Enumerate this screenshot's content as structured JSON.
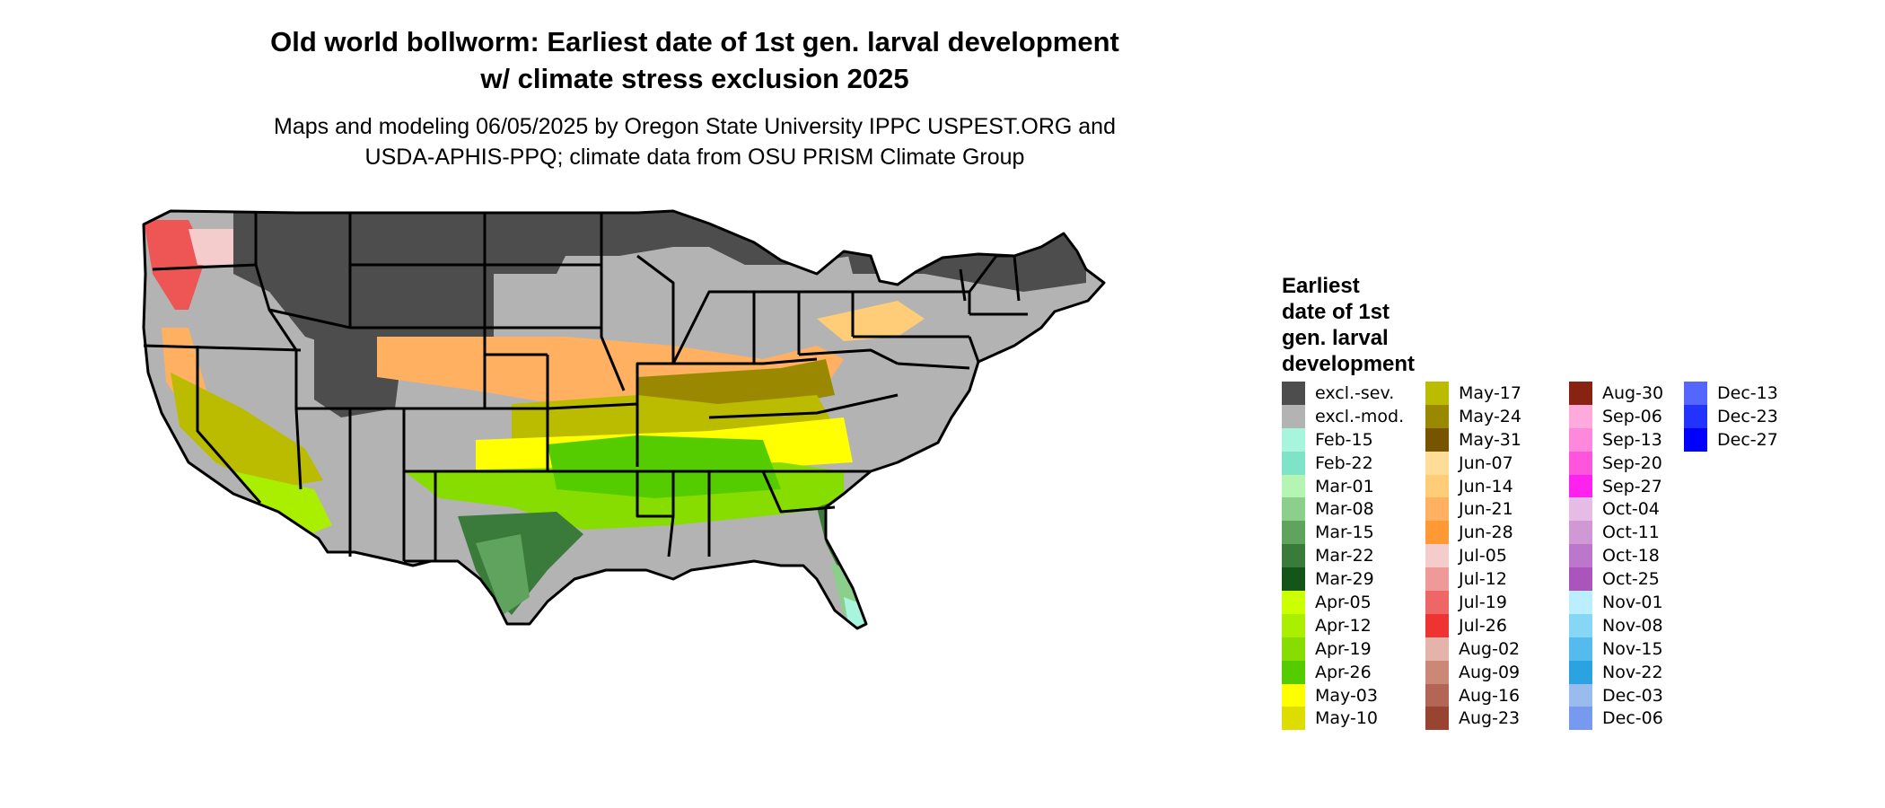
{
  "title": {
    "line1": "Old world bollworm: Earliest date of 1st gen. larval development",
    "line2": "w/ climate stress exclusion 2025"
  },
  "subtitle": {
    "line1": "Maps and modeling 06/05/2025 by Oregon State University IPPC USPEST.ORG and",
    "line2": "USDA-APHIS-PPQ; climate data from OSU PRISM Climate Group"
  },
  "legend": {
    "title_lines": [
      "Earliest",
      "date of 1st",
      "gen. larval",
      "development"
    ],
    "columns": [
      [
        {
          "label": "excl.-sev.",
          "color": "#4d4d4d"
        },
        {
          "label": "excl.-mod.",
          "color": "#b3b3b3"
        },
        {
          "label": "Feb-15",
          "color": "#a6f5dc"
        },
        {
          "label": "Feb-22",
          "color": "#7fe3c8"
        },
        {
          "label": "Mar-01",
          "color": "#b4f5b4"
        },
        {
          "label": "Mar-08",
          "color": "#8ccf8c"
        },
        {
          "label": "Mar-15",
          "color": "#5fa35f"
        },
        {
          "label": "Mar-22",
          "color": "#3a7a3a"
        },
        {
          "label": "Mar-29",
          "color": "#15551a"
        },
        {
          "label": "Apr-05",
          "color": "#ccff00"
        },
        {
          "label": "Apr-12",
          "color": "#aaee00"
        },
        {
          "label": "Apr-19",
          "color": "#88dd00"
        },
        {
          "label": "Apr-26",
          "color": "#55cc00"
        },
        {
          "label": "May-03",
          "color": "#ffff00"
        },
        {
          "label": "May-10",
          "color": "#dddd00"
        }
      ],
      [
        {
          "label": "May-17",
          "color": "#bbbb00"
        },
        {
          "label": "May-24",
          "color": "#998800"
        },
        {
          "label": "May-31",
          "color": "#775500"
        },
        {
          "label": "Jun-07",
          "color": "#ffdd99"
        },
        {
          "label": "Jun-14",
          "color": "#ffcc77"
        },
        {
          "label": "Jun-21",
          "color": "#ffb060"
        },
        {
          "label": "Jun-28",
          "color": "#ff9933"
        },
        {
          "label": "Jul-05",
          "color": "#f5cccc"
        },
        {
          "label": "Jul-12",
          "color": "#f09999"
        },
        {
          "label": "Jul-19",
          "color": "#ee6666"
        },
        {
          "label": "Jul-26",
          "color": "#ee3333"
        },
        {
          "label": "Aug-02",
          "color": "#e6b3aa"
        },
        {
          "label": "Aug-09",
          "color": "#cc8877"
        },
        {
          "label": "Aug-16",
          "color": "#b36655"
        },
        {
          "label": "Aug-23",
          "color": "#994433"
        }
      ],
      [
        {
          "label": "Aug-30",
          "color": "#882211"
        },
        {
          "label": "Sep-06",
          "color": "#ffaadd"
        },
        {
          "label": "Sep-13",
          "color": "#ff88dd"
        },
        {
          "label": "Sep-20",
          "color": "#ff55dd"
        },
        {
          "label": "Sep-27",
          "color": "#ff22ee"
        },
        {
          "label": "Oct-04",
          "color": "#e6bbe6"
        },
        {
          "label": "Oct-11",
          "color": "#d099d6"
        },
        {
          "label": "Oct-18",
          "color": "#bb77cc"
        },
        {
          "label": "Oct-25",
          "color": "#aa55bb"
        },
        {
          "label": "Nov-01",
          "color": "#bbeeff"
        },
        {
          "label": "Nov-08",
          "color": "#88d6f5"
        },
        {
          "label": "Nov-15",
          "color": "#55bbee"
        },
        {
          "label": "Nov-22",
          "color": "#2aa3e0"
        },
        {
          "label": "Dec-03",
          "color": "#99bbee"
        },
        {
          "label": "Dec-06",
          "color": "#7799ee"
        }
      ],
      [
        {
          "label": "Dec-13",
          "color": "#5566ff"
        },
        {
          "label": "Dec-23",
          "color": "#2233ff"
        },
        {
          "label": "Dec-27",
          "color": "#0000ff"
        }
      ]
    ]
  }
}
